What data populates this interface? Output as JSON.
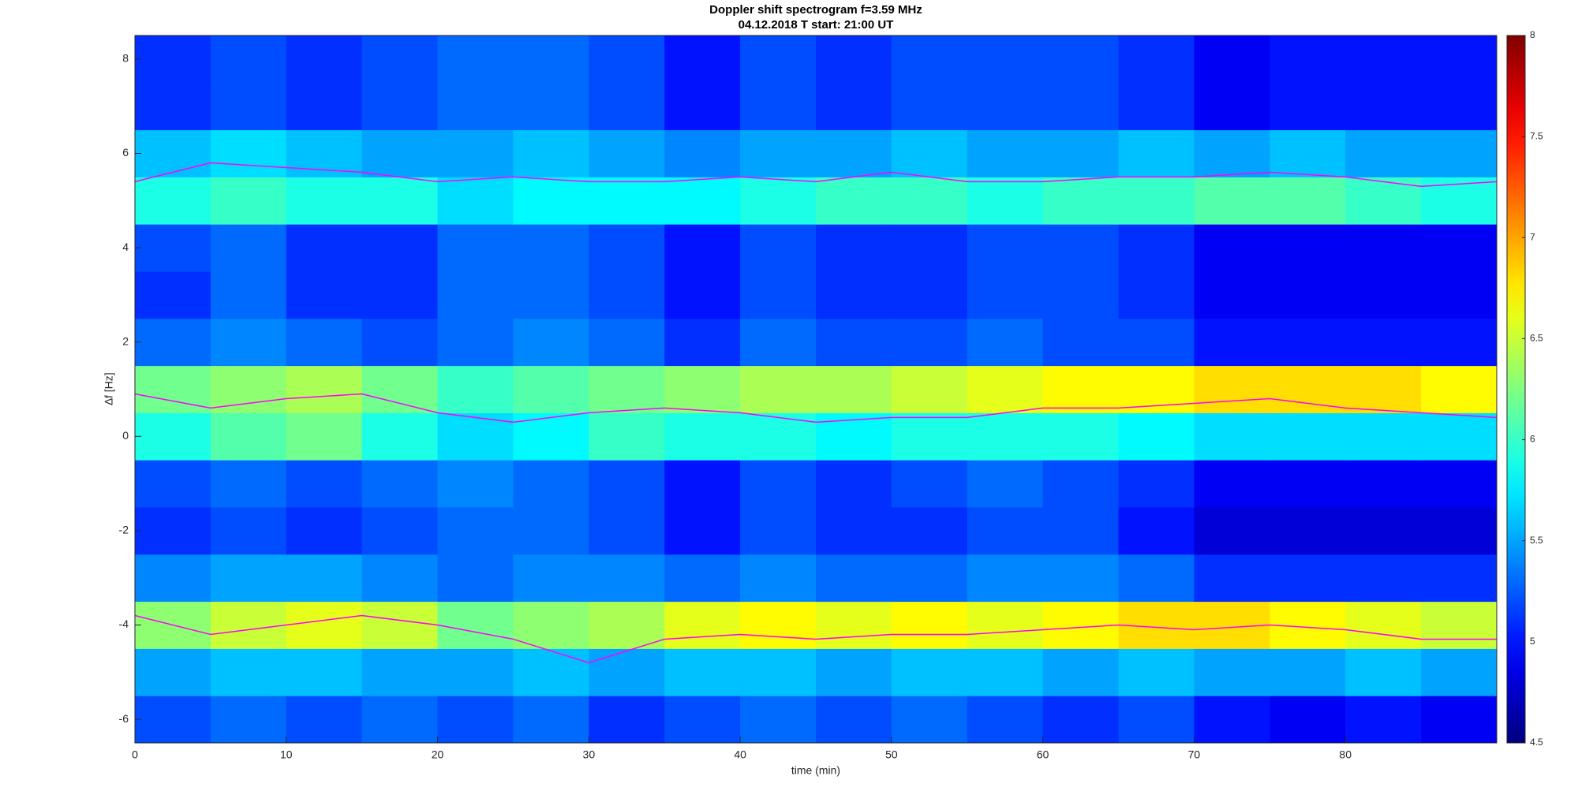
{
  "chart_data": {
    "type": "heatmap",
    "title": "Doppler shift spectrogram f=3.59 MHz",
    "subtitle": "04.12.2018   T start: 21:00 UT",
    "x_label": "time (min)",
    "y_label": "∆f [Hz]",
    "xlim": [
      0,
      90
    ],
    "ylim": [
      -6.5,
      8.5
    ],
    "xticks": [
      0,
      10,
      20,
      30,
      40,
      50,
      60,
      70,
      80
    ],
    "yticks": [
      -6,
      -4,
      -2,
      0,
      2,
      4,
      6,
      8
    ],
    "colormap": "jet",
    "clim": [
      4.5,
      8
    ],
    "cticks": [
      4.5,
      5,
      5.5,
      6,
      6.5,
      7,
      7.5,
      8
    ],
    "xbins": [
      0,
      5,
      10,
      15,
      20,
      25,
      30,
      35,
      40,
      45,
      50,
      55,
      60,
      65,
      70,
      75,
      80,
      85,
      90
    ],
    "ybins": [
      -6.5,
      -5.5,
      -4.5,
      -3.5,
      -2.5,
      -1.5,
      -0.5,
      0.5,
      1.5,
      2.5,
      3.5,
      4.5,
      5.5,
      6.5,
      7.5,
      8.5
    ],
    "z": [
      [
        5.2,
        5.3,
        5.2,
        5.3,
        5.2,
        5.3,
        5.1,
        5.2,
        5.3,
        5.2,
        5.3,
        5.2,
        5.1,
        5.2,
        5.0,
        4.9,
        5.0,
        4.9
      ],
      [
        5.5,
        5.6,
        5.6,
        5.5,
        5.5,
        5.6,
        5.5,
        5.6,
        5.6,
        5.5,
        5.6,
        5.6,
        5.5,
        5.6,
        5.5,
        5.5,
        5.6,
        5.5
      ],
      [
        6.3,
        6.5,
        6.6,
        6.5,
        6.2,
        6.3,
        6.4,
        6.6,
        6.7,
        6.6,
        6.7,
        6.6,
        6.7,
        6.8,
        6.8,
        6.7,
        6.6,
        6.5
      ],
      [
        5.4,
        5.5,
        5.5,
        5.4,
        5.3,
        5.4,
        5.4,
        5.3,
        5.4,
        5.3,
        5.3,
        5.4,
        5.4,
        5.3,
        5.1,
        5.1,
        5.1,
        5.1
      ],
      [
        5.1,
        5.2,
        5.1,
        5.2,
        5.3,
        5.3,
        5.2,
        5.0,
        5.2,
        5.1,
        5.1,
        5.2,
        5.2,
        5.0,
        4.8,
        4.8,
        4.8,
        4.8
      ],
      [
        5.2,
        5.3,
        5.2,
        5.3,
        5.4,
        5.3,
        5.2,
        5.0,
        5.2,
        5.1,
        5.2,
        5.3,
        5.2,
        5.1,
        4.9,
        4.9,
        4.9,
        4.9
      ],
      [
        5.9,
        6.1,
        6.2,
        5.9,
        5.7,
        5.8,
        6.0,
        5.9,
        5.9,
        5.8,
        5.9,
        5.9,
        5.9,
        5.8,
        5.7,
        5.7,
        5.7,
        5.7
      ],
      [
        6.2,
        6.3,
        6.4,
        6.2,
        6.0,
        6.1,
        6.2,
        6.3,
        6.4,
        6.4,
        6.5,
        6.6,
        6.7,
        6.7,
        6.8,
        6.8,
        6.8,
        6.7
      ],
      [
        5.3,
        5.4,
        5.3,
        5.2,
        5.3,
        5.4,
        5.3,
        5.1,
        5.3,
        5.2,
        5.2,
        5.3,
        5.2,
        5.2,
        5.0,
        5.0,
        5.0,
        5.0
      ],
      [
        5.1,
        5.3,
        5.1,
        5.1,
        5.3,
        5.3,
        5.2,
        5.0,
        5.2,
        5.1,
        5.1,
        5.2,
        5.2,
        5.1,
        4.9,
        4.9,
        4.9,
        4.9
      ],
      [
        5.2,
        5.3,
        5.1,
        5.1,
        5.3,
        5.3,
        5.2,
        5.0,
        5.2,
        5.1,
        5.1,
        5.2,
        5.2,
        5.1,
        4.9,
        4.9,
        4.9,
        4.9
      ],
      [
        5.9,
        6.0,
        5.9,
        5.9,
        5.7,
        5.8,
        5.8,
        5.8,
        5.9,
        6.0,
        6.0,
        5.9,
        6.0,
        6.0,
        6.1,
        6.1,
        6.0,
        5.9
      ],
      [
        5.6,
        5.7,
        5.6,
        5.5,
        5.5,
        5.6,
        5.5,
        5.4,
        5.5,
        5.5,
        5.6,
        5.5,
        5.5,
        5.6,
        5.5,
        5.6,
        5.5,
        5.5
      ],
      [
        5.1,
        5.2,
        5.1,
        5.2,
        5.3,
        5.3,
        5.2,
        5.0,
        5.2,
        5.1,
        5.2,
        5.2,
        5.2,
        5.1,
        4.9,
        5.0,
        5.0,
        5.0
      ],
      [
        5.1,
        5.2,
        5.1,
        5.2,
        5.3,
        5.3,
        5.2,
        5.0,
        5.2,
        5.1,
        5.2,
        5.2,
        5.2,
        5.1,
        4.9,
        5.0,
        5.0,
        5.0
      ]
    ],
    "x": [
      0,
      5,
      10,
      15,
      20,
      25,
      30,
      35,
      40,
      45,
      50,
      55,
      60,
      65,
      70,
      75,
      80,
      85,
      90
    ],
    "series": [
      {
        "color": "#ff00ff",
        "values": [
          5.4,
          5.8,
          5.7,
          5.6,
          5.4,
          5.5,
          5.4,
          5.4,
          5.5,
          5.4,
          5.6,
          5.4,
          5.4,
          5.5,
          5.5,
          5.6,
          5.5,
          5.3,
          5.4
        ]
      },
      {
        "color": "#ff00ff",
        "values": [
          0.9,
          0.6,
          0.8,
          0.9,
          0.5,
          0.3,
          0.5,
          0.6,
          0.5,
          0.3,
          0.4,
          0.4,
          0.6,
          0.6,
          0.7,
          0.8,
          0.6,
          0.5,
          0.4
        ]
      },
      {
        "color": "#ff00ff",
        "values": [
          -3.8,
          -4.2,
          -4.0,
          -3.8,
          -4.0,
          -4.3,
          -4.8,
          -4.3,
          -4.2,
          -4.3,
          -4.2,
          -4.2,
          -4.1,
          -4.0,
          -4.1,
          -4.0,
          -4.1,
          -4.3,
          -4.3
        ]
      }
    ]
  }
}
